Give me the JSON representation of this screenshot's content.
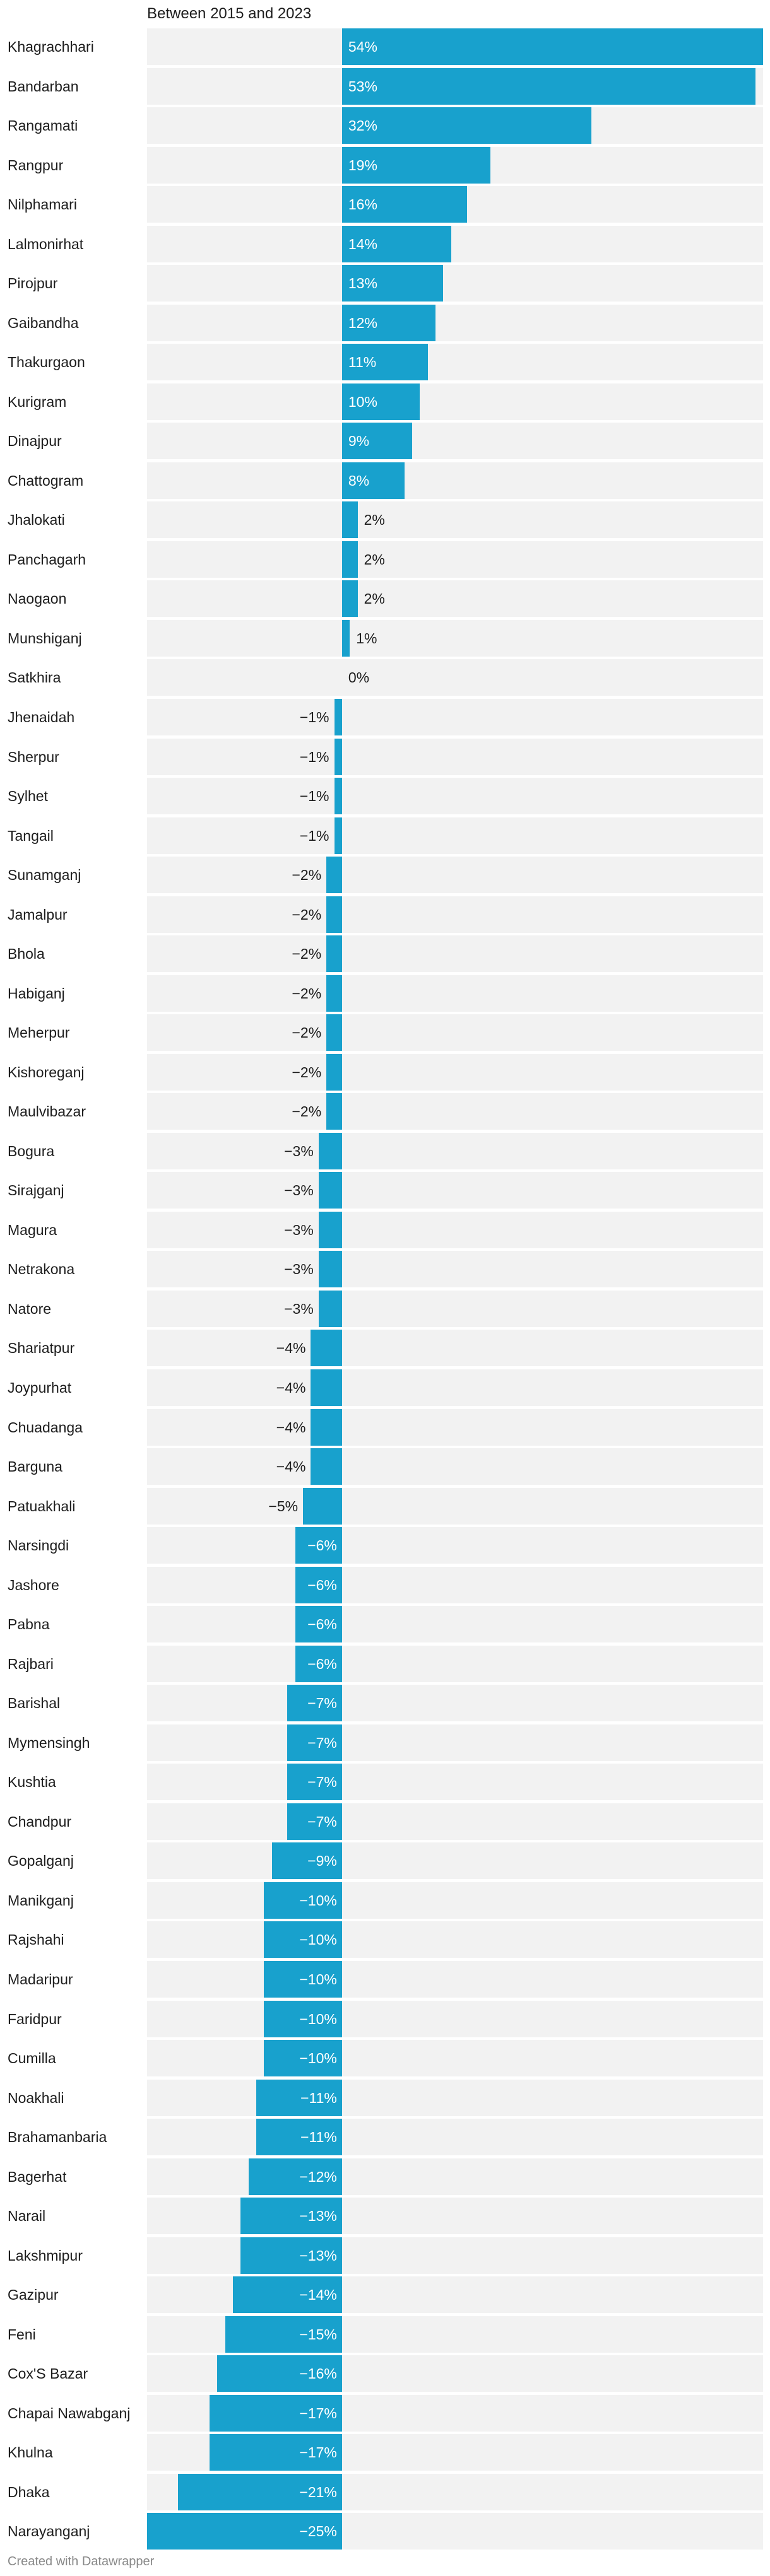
{
  "chart_data": {
    "type": "bar",
    "orientation": "horizontal",
    "title": "",
    "subtitle": "Between 2015 and 2023",
    "xlabel": "",
    "ylabel": "",
    "value_format": "percent",
    "xlim": [
      -25,
      54
    ],
    "grid": false,
    "legend": "none",
    "bar_color": "#18a1cd",
    "background_color": "#f2f2f2",
    "categories": [
      "Khagrachhari",
      "Bandarban",
      "Rangamati",
      "Rangpur",
      "Nilphamari",
      "Lalmonirhat",
      "Pirojpur",
      "Gaibandha",
      "Thakurgaon",
      "Kurigram",
      "Dinajpur",
      "Chattogram",
      "Jhalokati",
      "Panchagarh",
      "Naogaon",
      "Munshiganj",
      "Satkhira",
      "Jhenaidah",
      "Sherpur",
      "Sylhet",
      "Tangail",
      "Sunamganj",
      "Jamalpur",
      "Bhola",
      "Habiganj",
      "Meherpur",
      "Kishoreganj",
      "Maulvibazar",
      "Bogura",
      "Sirajganj",
      "Magura",
      "Netrakona",
      "Natore",
      "Shariatpur",
      "Joypurhat",
      "Chuadanga",
      "Barguna",
      "Patuakhali",
      "Narsingdi",
      "Jashore",
      "Pabna",
      "Rajbari",
      "Barishal",
      "Mymensingh",
      "Kushtia",
      "Chandpur",
      "Gopalganj",
      "Manikganj",
      "Rajshahi",
      "Madaripur",
      "Faridpur",
      "Cumilla",
      "Noakhali",
      "Brahamanbaria",
      "Bagerhat",
      "Narail",
      "Lakshmipur",
      "Gazipur",
      "Feni",
      "Cox'S Bazar",
      "Chapai Nawabganj",
      "Khulna",
      "Dhaka",
      "Narayanganj"
    ],
    "values": [
      54,
      53,
      32,
      19,
      16,
      14,
      13,
      12,
      11,
      10,
      9,
      8,
      2,
      2,
      2,
      1,
      0,
      -1,
      -1,
      -1,
      -1,
      -2,
      -2,
      -2,
      -2,
      -2,
      -2,
      -2,
      -3,
      -3,
      -3,
      -3,
      -3,
      -4,
      -4,
      -4,
      -4,
      -5,
      -6,
      -6,
      -6,
      -6,
      -7,
      -7,
      -7,
      -7,
      -9,
      -10,
      -10,
      -10,
      -10,
      -10,
      -11,
      -11,
      -12,
      -13,
      -13,
      -14,
      -15,
      -16,
      -17,
      -17,
      -21,
      -25
    ],
    "value_labels": [
      "54%",
      "53%",
      "32%",
      "19%",
      "16%",
      "14%",
      "13%",
      "12%",
      "11%",
      "10%",
      "9%",
      "8%",
      "2%",
      "2%",
      "2%",
      "1%",
      "0%",
      "−1%",
      "−1%",
      "−1%",
      "−1%",
      "−2%",
      "−2%",
      "−2%",
      "−2%",
      "−2%",
      "−2%",
      "−2%",
      "−3%",
      "−3%",
      "−3%",
      "−3%",
      "−3%",
      "−4%",
      "−4%",
      "−4%",
      "−4%",
      "−5%",
      "−6%",
      "−6%",
      "−6%",
      "−6%",
      "−7%",
      "−7%",
      "−7%",
      "−7%",
      "−9%",
      "−10%",
      "−10%",
      "−10%",
      "−10%",
      "−10%",
      "−11%",
      "−11%",
      "−12%",
      "−13%",
      "−13%",
      "−14%",
      "−15%",
      "−16%",
      "−17%",
      "−17%",
      "−21%",
      "−25%"
    ]
  },
  "footer": "Created with Datawrapper"
}
